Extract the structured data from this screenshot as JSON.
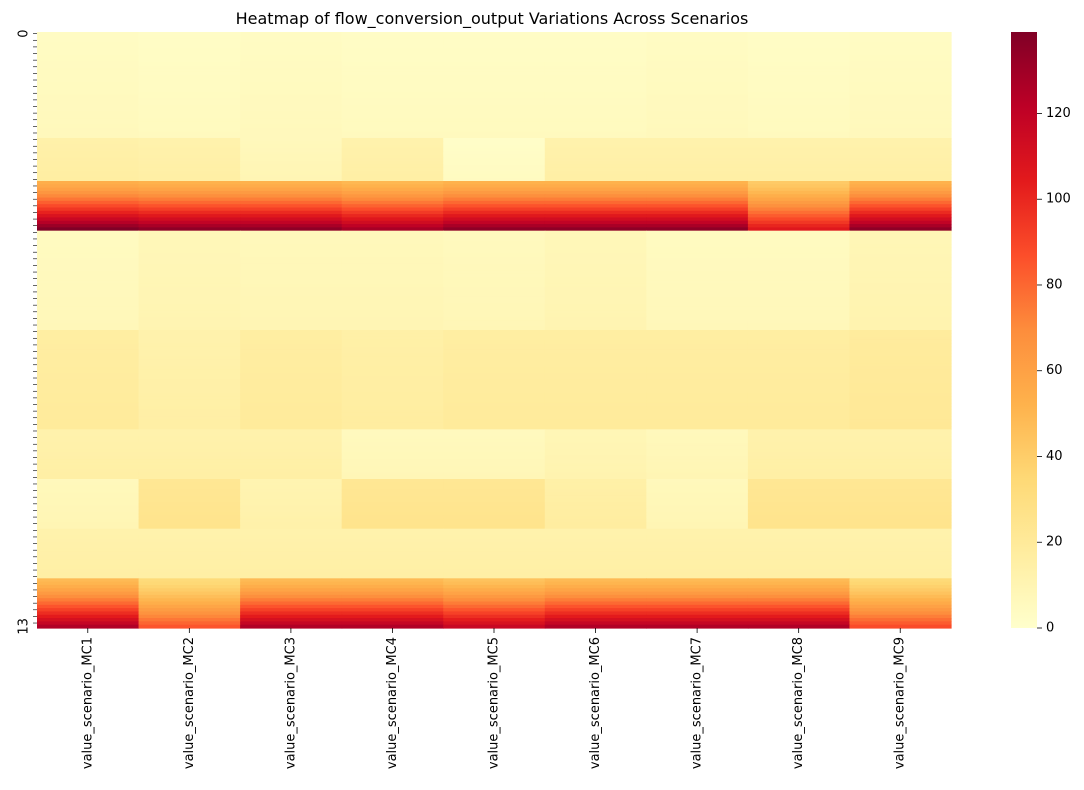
{
  "chart_data": {
    "type": "heatmap",
    "title": "Heatmap of flow_conversion_output Variations Across Scenarios",
    "xlabel": "",
    "ylabel": "",
    "x_categories": [
      "value_scenario_MC1",
      "value_scenario_MC2",
      "value_scenario_MC3",
      "value_scenario_MC4",
      "value_scenario_MC5",
      "value_scenario_MC6",
      "value_scenario_MC7",
      "value_scenario_MC8",
      "value_scenario_MC9"
    ],
    "row_count": 180,
    "y_tick_labels_note": "dense overlapping row-index labels; visible first '0', last '13'",
    "colorbar": {
      "ticks": [
        0,
        20,
        40,
        60,
        80,
        100,
        120
      ],
      "range": [
        0,
        139
      ],
      "colormap": "YlOrRd"
    },
    "y_tick_labels": [
      "0",
      "13"
    ],
    "segments": [
      {
        "rows": 32,
        "values": [
          5,
          4,
          5,
          4,
          4,
          4,
          5,
          4,
          5
        ],
        "variation": "mild"
      },
      {
        "rows": 13,
        "values": [
          15,
          14,
          8,
          14,
          3,
          14,
          14,
          14,
          14
        ],
        "variation": "mild"
      },
      {
        "rows": 15,
        "values": [
          98,
          95,
          95,
          90,
          95,
          95,
          95,
          75,
          95
        ],
        "variation": "gradient"
      },
      {
        "rows": 30,
        "values": [
          6,
          9,
          8,
          8,
          7,
          9,
          6,
          6,
          10
        ],
        "variation": "mild"
      },
      {
        "rows": 30,
        "values": [
          18,
          14,
          18,
          16,
          18,
          18,
          18,
          18,
          20
        ],
        "variation": "mild"
      },
      {
        "rows": 15,
        "values": [
          14,
          14,
          14,
          7,
          7,
          10,
          8,
          14,
          14
        ],
        "variation": "mild"
      },
      {
        "rows": 15,
        "values": [
          8,
          24,
          12,
          24,
          24,
          16,
          8,
          24,
          24
        ],
        "variation": "mild"
      },
      {
        "rows": 15,
        "values": [
          14,
          14,
          14,
          14,
          14,
          14,
          14,
          14,
          14
        ],
        "variation": "mild"
      },
      {
        "rows": 15,
        "values": [
          88,
          60,
          88,
          88,
          82,
          88,
          88,
          88,
          62
        ],
        "variation": "gradient"
      }
    ]
  }
}
